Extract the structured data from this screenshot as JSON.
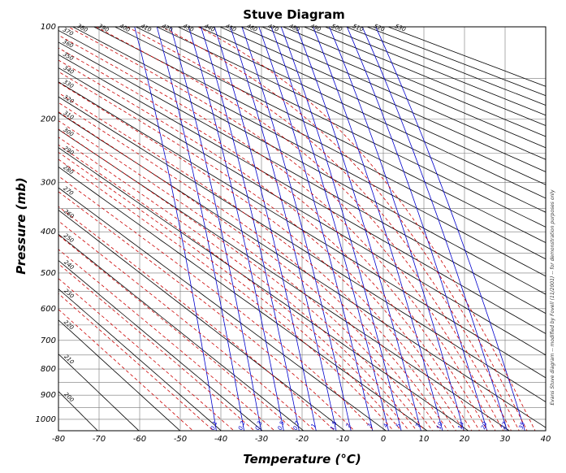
{
  "chart_data": {
    "type": "line",
    "title": "Stuve Diagram",
    "xlabel": "Temperature (°C)",
    "ylabel": "Pressure (mb)",
    "x_scale": "linear",
    "y_scale": "p^0.286, pressure increasing downward",
    "xlim": [
      -80,
      40
    ],
    "ylim": [
      1050,
      100
    ],
    "x_ticks": [
      -80,
      -70,
      -60,
      -50,
      -40,
      -30,
      -20,
      -10,
      0,
      10,
      20,
      30,
      40
    ],
    "y_ticks": [
      100,
      200,
      300,
      400,
      500,
      600,
      700,
      800,
      900,
      1000
    ],
    "grid": true,
    "side_note": "Evans Stuve diagram -- modified by Fovell (11/2001) -- for demonstration purposes only",
    "series": [
      {
        "kind": "dry_adiabats",
        "color": "#000000",
        "style": "solid",
        "unit": "K",
        "values": [
          190,
          200,
          210,
          220,
          230,
          240,
          250,
          260,
          270,
          280,
          290,
          300,
          310,
          320,
          330,
          340,
          350,
          360,
          370,
          380,
          390,
          400,
          410,
          420,
          430,
          440,
          450,
          460,
          470,
          480,
          490,
          500,
          510,
          520,
          530
        ]
      },
      {
        "kind": "saturation_mixing_ratio_lines",
        "color": "#0000cc",
        "style": "solid",
        "unit": "g/kg",
        "values": [
          0.1,
          0.2,
          0.3,
          0.5,
          0.7,
          1,
          1.5,
          2,
          3,
          4,
          5,
          7,
          10,
          14,
          20,
          27,
          35
        ],
        "labels": [
          "0.1",
          "0.2",
          "0.3",
          "0.5",
          "0.7",
          "1",
          "1.5",
          "2",
          "3",
          "4",
          "5",
          "7",
          "10",
          "14",
          "20",
          "27",
          "35"
        ]
      },
      {
        "kind": "moist_adiabats",
        "color": "#cc0000",
        "style": "dashed",
        "unit": "°C at 1000 mb",
        "values": [
          -50,
          -45,
          -40,
          -35,
          -30,
          -25,
          -20,
          -15,
          -10,
          -5,
          0,
          2,
          4,
          6,
          8,
          10,
          12,
          14,
          16,
          18,
          20,
          22,
          24,
          26,
          28,
          30,
          32,
          34,
          36
        ]
      }
    ],
    "adiabat_labels": [
      "190",
      "200",
      "210",
      "220",
      "230",
      "240",
      "250",
      "260",
      "270",
      "280",
      "290",
      "300",
      "310",
      "320",
      "330",
      "340",
      "350",
      "360",
      "370",
      "380",
      "390",
      "400",
      "410",
      "420",
      "430",
      "440",
      "450",
      "460",
      "470",
      "480",
      "490",
      "500",
      "510",
      "520",
      "530"
    ]
  }
}
